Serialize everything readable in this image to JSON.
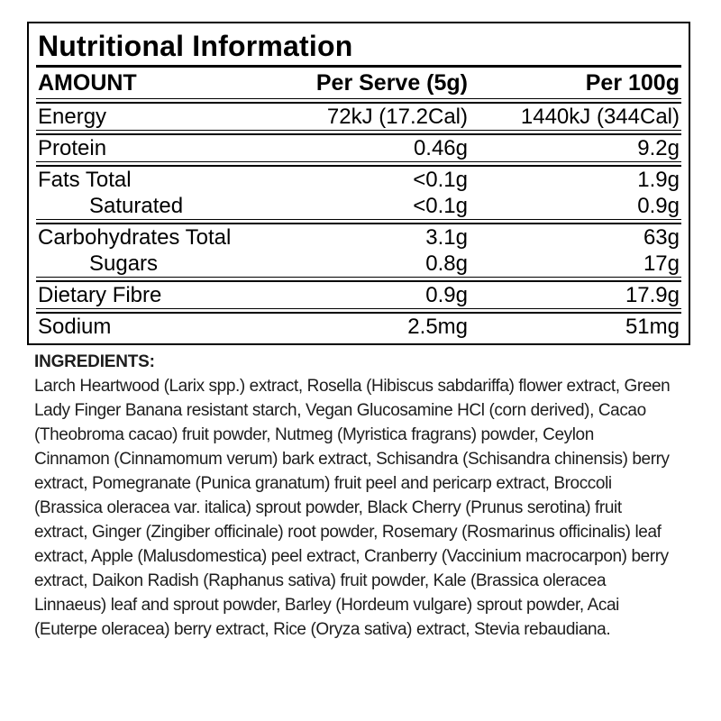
{
  "panel": {
    "title": "Nutritional Information",
    "columns": {
      "amount": "AMOUNT",
      "per_serve": "Per Serve (5g)",
      "per_100g": "Per 100g"
    },
    "rows": [
      {
        "label": "Energy",
        "per_serve": "72kJ (17.2Cal)",
        "per_100g": "1440kJ (344Cal)",
        "indent": false,
        "separator_after": true
      },
      {
        "label": "Protein",
        "per_serve": "0.46g",
        "per_100g": "9.2g",
        "indent": false,
        "separator_after": true
      },
      {
        "label": "Fats Total",
        "per_serve": "<0.1g",
        "per_100g": "1.9g",
        "indent": false,
        "separator_after": false
      },
      {
        "label": "Saturated",
        "per_serve": "<0.1g",
        "per_100g": "0.9g",
        "indent": true,
        "separator_after": true
      },
      {
        "label": "Carbohydrates Total",
        "per_serve": "3.1g",
        "per_100g": "63g",
        "indent": false,
        "separator_after": false
      },
      {
        "label": "Sugars",
        "per_serve": "0.8g",
        "per_100g": "17g",
        "indent": true,
        "separator_after": true
      },
      {
        "label": "Dietary Fibre",
        "per_serve": "0.9g",
        "per_100g": "17.9g",
        "indent": false,
        "separator_after": true
      },
      {
        "label": "Sodium",
        "per_serve": "2.5mg",
        "per_100g": "51mg",
        "indent": false,
        "separator_after": false
      }
    ]
  },
  "ingredients": {
    "heading": "INGREDIENTS:",
    "text": "Larch Heartwood (Larix spp.) extract, Rosella (Hibiscus sabdariffa) flower extract, Green Lady Finger Banana resistant starch, Vegan Glucosamine HCl (corn derived), Cacao (Theobroma cacao) fruit powder, Nutmeg (Myristica fragrans) powder, Ceylon Cinnamon (Cinnamomum verum) bark extract, Schisandra (Schisandra chinensis) berry extract, Pomegranate (Punica granatum) fruit peel and pericarp extract, Broccoli (Brassica oleracea var. italica) sprout powder, Black Cherry (Prunus serotina) fruit extract, Ginger (Zingiber officinale) root powder, Rosemary (Rosmarinus officinalis) leaf extract, Apple (Malusdomestica) peel extract, Cranberry (Vaccinium macrocarpon) berry extract, Daikon Radish (Raphanus sativa) fruit powder, Kale (Brassica oleracea Linnaeus) leaf and sprout powder, Barley (Hordeum vulgare) sprout powder, Acai (Euterpe oleracea) berry extract, Rice (Oryza sativa) extract, Stevia rebaudiana."
  },
  "colors": {
    "text": "#000000",
    "background": "#ffffff",
    "border": "#000000"
  }
}
